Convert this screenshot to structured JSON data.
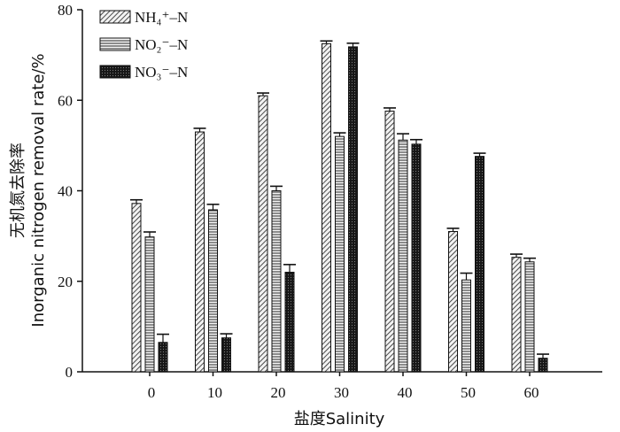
{
  "chart_data": {
    "type": "bar",
    "categories": [
      "0",
      "10",
      "20",
      "30",
      "40",
      "50",
      "60"
    ],
    "series": [
      {
        "name": "NH₄⁺–N",
        "pattern": "diag-hatch",
        "values": [
          37.2,
          53.0,
          61.0,
          72.5,
          57.6,
          31.0,
          25.3
        ],
        "errors": [
          0.8,
          0.8,
          0.6,
          0.6,
          0.7,
          0.7,
          0.7
        ]
      },
      {
        "name": "NO₂⁻–N",
        "pattern": "horizontal-lines",
        "values": [
          29.8,
          35.8,
          40.0,
          52.0,
          51.2,
          20.3,
          24.3
        ],
        "errors": [
          1.1,
          1.2,
          1.0,
          0.8,
          1.4,
          1.5,
          0.8
        ]
      },
      {
        "name": "NO₃⁻–N",
        "pattern": "dark-dots",
        "values": [
          6.5,
          7.5,
          22.0,
          71.8,
          50.3,
          47.6,
          3.0
        ],
        "errors": [
          1.8,
          0.9,
          1.7,
          0.8,
          1.0,
          0.7,
          0.9
        ]
      }
    ],
    "xlabel": "盐度Salinity",
    "ylabel_cn": "无机氮去除率",
    "ylabel_en": "Inorganic nitrogen removal rate/%",
    "ylim": [
      0,
      80
    ],
    "yticks": [
      "0",
      "20",
      "40",
      "60",
      "80"
    ],
    "grid": false,
    "legend_position": "top-left"
  }
}
